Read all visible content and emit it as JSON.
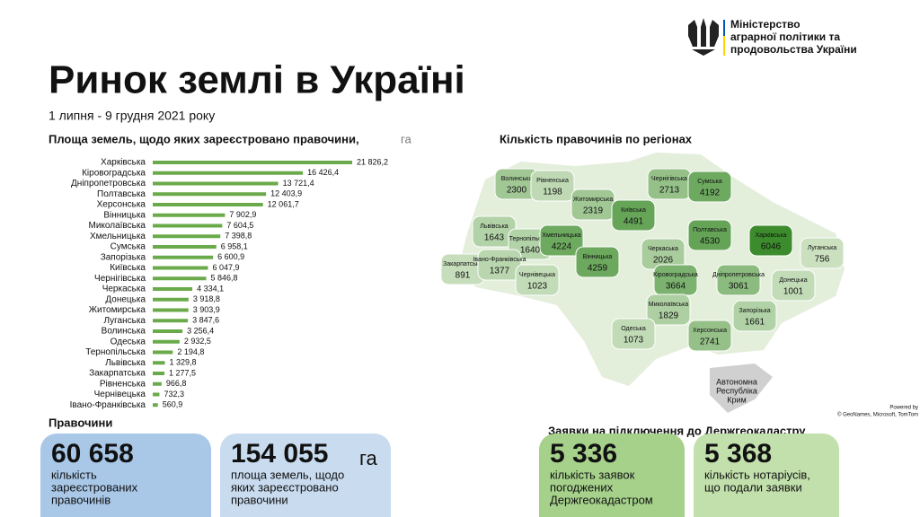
{
  "header": {
    "ministry": [
      "Міністерство",
      "аграрної політики та",
      "продовольства України"
    ],
    "title": "Ринок землі в Україні",
    "period": "1 липня - 9 грудня 2021 року"
  },
  "chart_data": {
    "type": "bar",
    "orientation": "horizontal",
    "title": "Площа земель, щодо яких зареєстровано правочини,",
    "unit": "га",
    "color": "#6aaa4a",
    "categories": [
      "Харківська",
      "Кіровоградська",
      "Дніпропетровська",
      "Полтавська",
      "Херсонська",
      "Вінницька",
      "Миколаївська",
      "Хмельницька",
      "Сумська",
      "Запорізька",
      "Київська",
      "Чернігівська",
      "Черкаська",
      "Донецька",
      "Житомирська",
      "Луганська",
      "Волинська",
      "Одеська",
      "Тернопільська",
      "Львівська",
      "Закарпатська",
      "Рівненська",
      "Чернівецька",
      "Івано-Франківська"
    ],
    "values": [
      21826.2,
      16426.4,
      13721.4,
      12403.9,
      12061.7,
      7902.9,
      7604.5,
      7398.8,
      6958.1,
      6600.9,
      6047.9,
      5846.8,
      4334.1,
      3918.8,
      3903.9,
      3847.6,
      3256.4,
      2932.5,
      2194.8,
      1329.8,
      1277.5,
      966.8,
      732.3,
      560.9
    ],
    "value_labels": [
      "21 826,2",
      "16 426,4",
      "13 721,4",
      "12 403,9",
      "12 061,7",
      "7 902,9",
      "7 604,5",
      "7 398,8",
      "6 958,1",
      "6 600,9",
      "6 047,9",
      "5 846,8",
      "4 334,1",
      "3 918,8",
      "3 903,9",
      "3 847,6",
      "3 256,4",
      "2 932,5",
      "2 194,8",
      "1 329,8",
      "1 277,5",
      "966,8",
      "732,3",
      "560,9"
    ]
  },
  "map": {
    "title": "Кількість правочинів по регіонах",
    "crimea": [
      "Автономна",
      "Республіка",
      "Крим"
    ],
    "credits": [
      "Powered by",
      "© GeoNames, Microsoft, TomTom"
    ],
    "regions": [
      {
        "name": "Волинська",
        "value": 2300
      },
      {
        "name": "Рівненська",
        "value": 1198
      },
      {
        "name": "Житомирська",
        "value": 2319
      },
      {
        "name": "Київська",
        "value": 4491
      },
      {
        "name": "Чернігівська",
        "value": 2713
      },
      {
        "name": "Сумська",
        "value": 4192
      },
      {
        "name": "Харківська",
        "value": 6046
      },
      {
        "name": "Луганська",
        "value": 756
      },
      {
        "name": "Донецька",
        "value": 1001
      },
      {
        "name": "Львівська",
        "value": 1643
      },
      {
        "name": "Тернопільська",
        "value": 1640
      },
      {
        "name": "Хмельницька",
        "value": 4224
      },
      {
        "name": "Вінницька",
        "value": 4259
      },
      {
        "name": "Черкаська",
        "value": 2026
      },
      {
        "name": "Полтавська",
        "value": 4530
      },
      {
        "name": "Дніпропетровська",
        "value": 3061
      },
      {
        "name": "Кіровоградська",
        "value": 3664
      },
      {
        "name": "Закарпатська",
        "value": 891
      },
      {
        "name": "Івано-Франківська",
        "value": 1377
      },
      {
        "name": "Чернівецька",
        "value": 1023
      },
      {
        "name": "Миколаївська",
        "value": 1829
      },
      {
        "name": "Одеська",
        "value": 1073
      },
      {
        "name": "Запорізька",
        "value": 1661
      },
      {
        "name": "Херсонська",
        "value": 2741
      }
    ]
  },
  "deals": {
    "title": "Правочини",
    "cards": [
      {
        "number": "60 658",
        "text": [
          "кількість",
          "зареєстрованих",
          "правочинів"
        ]
      },
      {
        "number": "154 055",
        "unit": "га",
        "text": [
          "площа земель, щодо",
          "яких зареєстровано",
          "правочини"
        ]
      }
    ]
  },
  "requests": {
    "title": "Заявки на підключення до Держгеокадастру",
    "cards": [
      {
        "number": "5 336",
        "text": [
          "кількість заявок",
          "погоджених",
          "Держгеокадастром"
        ]
      },
      {
        "number": "5 368",
        "text": [
          "кількість нотаріусів,",
          "що подали заявки"
        ]
      }
    ]
  }
}
